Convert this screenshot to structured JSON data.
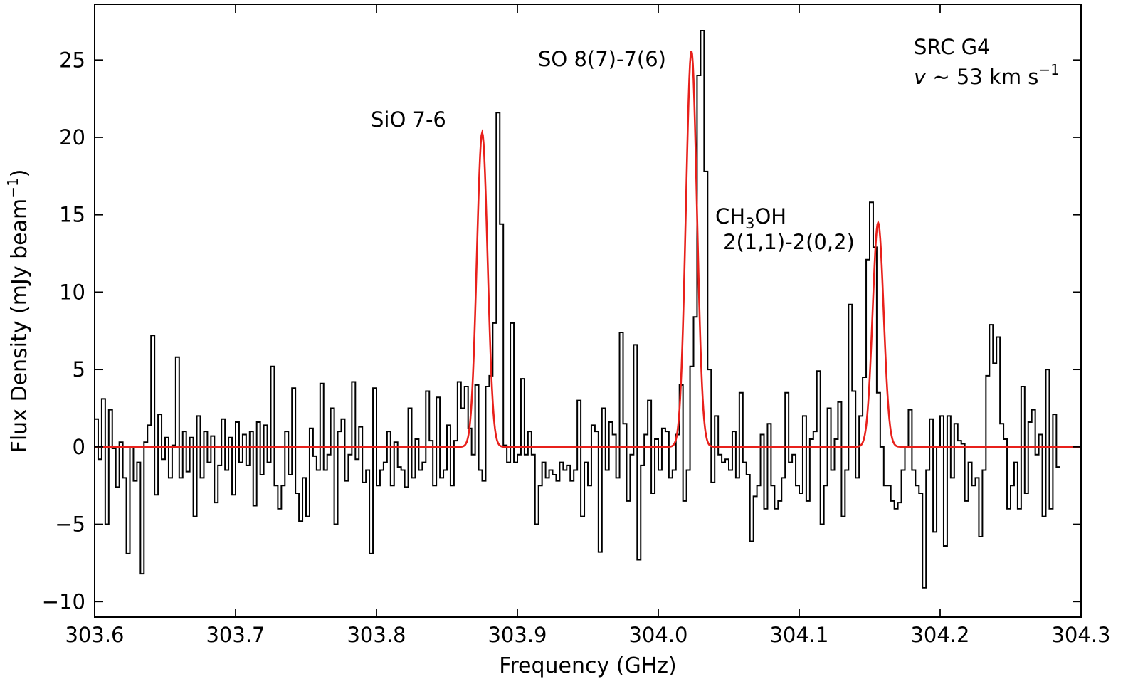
{
  "chart_data": {
    "type": "line",
    "xlabel": "Frequency (GHz)",
    "ylabel_main": "Flux Density (mJy beam",
    "ylabel_sup": "−1",
    "ylabel_close": ")",
    "xlim": [
      303.6,
      304.3
    ],
    "ylim": [
      -11,
      28.6
    ],
    "xticks": [
      303.6,
      303.7,
      303.8,
      303.9,
      304.0,
      304.1,
      304.2,
      304.3
    ],
    "xtick_labels": [
      "303.6",
      "303.7",
      "303.8",
      "303.9",
      "304.0",
      "304.1",
      "304.2",
      "304.3"
    ],
    "yticks": [
      -10,
      -5,
      0,
      5,
      10,
      15,
      20,
      25
    ],
    "ytick_labels": [
      "−10",
      "−5",
      "0",
      "5",
      "10",
      "15",
      "20",
      "25"
    ],
    "grid": false,
    "ticks_direction": "in",
    "colors": {
      "spectrum": "#000000",
      "fit": "#e8201b"
    },
    "annotations": {
      "source": "SRC G4",
      "velocity_sym": "v",
      "velocity_text": " ~ 53 km s",
      "velocity_sup": "−1",
      "sio": "SiO 7-6",
      "so": "SO 8(7)-7(6)",
      "ch3oh_a": "CH",
      "ch3oh_sub": "3",
      "ch3oh_b": "OH",
      "ch3oh_line2": "2(1,1)-2(0,2)"
    },
    "series": [
      {
        "style": "step",
        "x_start": 303.6,
        "x_step": 0.0025,
        "values": [
          1.8,
          -0.8,
          3.1,
          -5.0,
          2.4,
          -0.1,
          -2.6,
          0.3,
          -2.0,
          -6.9,
          0.0,
          -2.2,
          -1.0,
          -8.2,
          0.3,
          1.4,
          7.2,
          -3.1,
          2.1,
          -0.8,
          0.6,
          -2.0,
          0.1,
          5.8,
          -2.0,
          1.0,
          -1.6,
          0.6,
          -4.5,
          2.0,
          -2.0,
          1.0,
          -1.0,
          0.7,
          -3.6,
          -1.2,
          1.8,
          -1.5,
          0.6,
          -3.1,
          1.6,
          -1.0,
          0.8,
          -1.2,
          1.0,
          -3.8,
          1.6,
          -1.8,
          1.4,
          -1.0,
          5.2,
          -2.5,
          -4.0,
          -2.5,
          1.0,
          -1.8,
          3.8,
          -3.0,
          -4.8,
          -2.0,
          -4.5,
          1.2,
          -0.6,
          -1.5,
          4.1,
          -1.5,
          -0.5,
          2.5,
          -5.0,
          1.0,
          1.8,
          -2.2,
          -0.5,
          4.2,
          -0.8,
          1.3,
          -2.3,
          -1.5,
          -6.9,
          3.8,
          -2.5,
          -1.5,
          -1.0,
          1.0,
          -2.5,
          0.3,
          -1.3,
          -1.5,
          -2.6,
          2.5,
          -2.0,
          0.5,
          -1.5,
          -1.0,
          3.6,
          0.4,
          -2.5,
          3.2,
          -2.0,
          -1.5,
          1.4,
          -2.5,
          0.4,
          4.2,
          2.5,
          3.9,
          1.2,
          -0.5,
          4.0,
          -1.5,
          -2.2,
          3.9,
          4.6,
          8.0,
          21.6,
          14.4,
          0.1,
          -1.0,
          8.0,
          -1.0,
          -0.5,
          4.4,
          -0.5,
          1.0,
          -0.5,
          -5.0,
          -2.5,
          -1.0,
          -2.0,
          -1.5,
          -1.8,
          -2.2,
          -1.0,
          -1.5,
          -1.2,
          -2.2,
          -1.5,
          3.0,
          -4.5,
          -1.0,
          -2.5,
          1.4,
          1.0,
          -6.8,
          2.5,
          -1.5,
          1.6,
          0.8,
          -2.0,
          7.4,
          1.5,
          -3.5,
          -0.5,
          6.6,
          -7.3,
          -1.2,
          0.8,
          3.0,
          -3.0,
          0.5,
          -1.5,
          1.2,
          1.0,
          -2.0,
          -1.5,
          0.8,
          4.0,
          -3.5,
          -1.5,
          5.2,
          8.4,
          24.0,
          26.9,
          17.8,
          5.0,
          -2.3,
          2.0,
          -0.5,
          -1.0,
          -0.8,
          -1.5,
          1.0,
          -2.0,
          3.5,
          -1.0,
          -1.8,
          -6.1,
          -3.2,
          -2.5,
          0.8,
          -4.0,
          1.5,
          -2.5,
          -4.0,
          -3.5,
          -2.0,
          3.5,
          -1.0,
          -0.5,
          -2.5,
          -3.0,
          2.0,
          -3.5,
          0.5,
          1.0,
          4.9,
          -5.0,
          -2.5,
          2.5,
          -1.5,
          0.5,
          2.9,
          -4.5,
          -1.5,
          9.2,
          3.6,
          -2.0,
          2.0,
          4.5,
          12.1,
          15.8,
          12.9,
          3.5,
          0.0,
          -2.5,
          -2.5,
          -3.5,
          -4.0,
          -3.6,
          -1.5,
          0.0,
          2.4,
          -1.5,
          -2.5,
          -3.0,
          -9.1,
          -1.5,
          1.8,
          -5.5,
          0.0,
          2.0,
          -6.4,
          2.0,
          -2.0,
          1.5,
          0.4,
          0.2,
          -3.5,
          -1.0,
          -2.5,
          -2.0,
          -5.8,
          -1.5,
          4.6,
          7.9,
          5.4,
          7.1,
          1.5,
          0.5,
          -4.0,
          -2.5,
          -1.0,
          -4.0,
          3.9,
          -3.0,
          1.6,
          2.4,
          -0.5,
          0.8,
          -4.5,
          5.0,
          -4.0,
          2.1,
          -1.3
        ]
      },
      {
        "style": "gaussian-fit",
        "baseline": 0,
        "components": [
          {
            "center": 303.875,
            "amplitude": 20.3,
            "sigma": 0.0038
          },
          {
            "center": 304.0235,
            "amplitude": 25.6,
            "sigma": 0.0039
          },
          {
            "center": 304.156,
            "amplitude": 14.5,
            "sigma": 0.0039
          }
        ]
      }
    ]
  }
}
